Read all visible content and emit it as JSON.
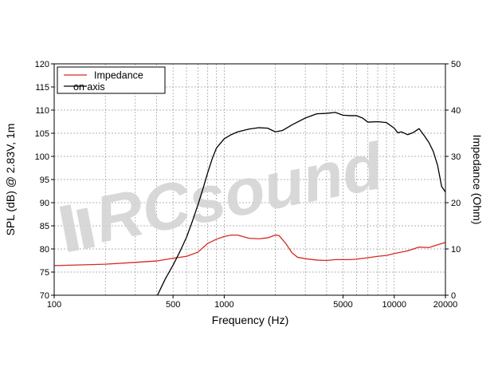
{
  "chart_data": {
    "type": "line",
    "xlabel": "Frequency (Hz)",
    "ylabel_left": "SPL (dB) @ 2.83V, 1m",
    "ylabel_right": "Impedance (Ohm)",
    "x_scale": "log",
    "xlim": [
      100,
      20000
    ],
    "ylim_left": [
      70,
      120
    ],
    "ylim_right": [
      0,
      50
    ],
    "x_tick_labels": [
      "100",
      "500",
      "1000",
      "5000",
      "10000",
      "20000"
    ],
    "y_left_tick_labels": [
      "70",
      "75",
      "80",
      "85",
      "90",
      "95",
      "100",
      "105",
      "110",
      "115",
      "120"
    ],
    "y_right_tick_labels": [
      "0",
      "10",
      "20",
      "30",
      "40",
      "50"
    ],
    "grid": true,
    "legend_position": "top-left",
    "watermark": "RCsound",
    "series": [
      {
        "name": "Impedance",
        "color": "#d42a20",
        "axis": "right",
        "x": [
          100,
          200,
          300,
          400,
          500,
          600,
          700,
          800,
          900,
          1000,
          1100,
          1200,
          1400,
          1600,
          1800,
          2000,
          2100,
          2300,
          2500,
          2700,
          3000,
          3500,
          4000,
          4500,
          5000,
          5500,
          6000,
          7000,
          8000,
          9000,
          10000,
          12000,
          14000,
          16000,
          18000,
          20000
        ],
        "values": [
          6.4,
          6.7,
          7.1,
          7.4,
          8.0,
          8.4,
          9.3,
          11.2,
          12.1,
          12.7,
          13.0,
          13.0,
          12.3,
          12.2,
          12.4,
          13.0,
          12.9,
          11.2,
          9.2,
          8.2,
          7.9,
          7.6,
          7.5,
          7.7,
          7.7,
          7.7,
          7.8,
          8.1,
          8.4,
          8.6,
          9.0,
          9.6,
          10.4,
          10.3,
          10.9,
          11.4
        ]
      },
      {
        "name": "on axis",
        "color": "#000000",
        "axis": "left",
        "x": [
          405,
          450,
          500,
          550,
          600,
          650,
          700,
          750,
          800,
          850,
          900,
          1000,
          1100,
          1200,
          1400,
          1600,
          1800,
          2000,
          2200,
          2500,
          3000,
          3500,
          4000,
          4500,
          5000,
          5500,
          6000,
          6500,
          7000,
          8000,
          9000,
          10000,
          10500,
          11000,
          12000,
          13000,
          14000,
          15000,
          16000,
          17000,
          18000,
          19000,
          20000
        ],
        "values": [
          70,
          73.5,
          76.5,
          79.5,
          82.5,
          86,
          89.5,
          93,
          96.5,
          99.5,
          101.8,
          103.8,
          104.7,
          105.3,
          105.9,
          106.2,
          106.1,
          105.3,
          105.6,
          106.8,
          108.3,
          109.2,
          109.3,
          109.5,
          108.9,
          108.8,
          108.8,
          108.3,
          107.4,
          107.5,
          107.3,
          106.1,
          105.1,
          105.3,
          104.7,
          105.2,
          106.0,
          104.5,
          103.0,
          101.0,
          98.0,
          93.5,
          92.3
        ]
      }
    ]
  }
}
